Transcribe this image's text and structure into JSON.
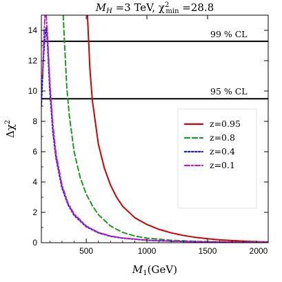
{
  "chart_data": {
    "type": "line",
    "title": {
      "main": "M",
      "main_sub": "H",
      "middle": " =3 TeV,  χ",
      "chi_sup": "2",
      "chi_sub": "min",
      "tail": " =28.8"
    },
    "xlabel": {
      "main": "M",
      "sub": "1",
      "unit": "(GeV)"
    },
    "ylabel": {
      "main": "Δχ",
      "sup": "2"
    },
    "xlim": [
      130,
      2000
    ],
    "ylim": [
      0,
      15
    ],
    "xticks": [
      500,
      1000,
      1500,
      2000
    ],
    "yticks": [
      0,
      2,
      4,
      6,
      8,
      10,
      12,
      14
    ],
    "grid": false,
    "legend_position": "right",
    "reference_lines": [
      {
        "y": 13.28,
        "label": "99 % CL"
      },
      {
        "y": 9.49,
        "label": "95 % CL"
      }
    ],
    "series": [
      {
        "name": "z=0.95",
        "color": "#cc0000",
        "dash": "solid",
        "x": [
          510,
          530,
          550,
          600,
          650,
          700,
          750,
          800,
          900,
          1000,
          1100,
          1200,
          1300,
          1400,
          1500,
          1600,
          1700,
          1800,
          1900,
          2000
        ],
        "y": [
          15.0,
          11.5,
          9.4,
          6.5,
          4.9,
          3.8,
          3.0,
          2.4,
          1.65,
          1.2,
          0.88,
          0.65,
          0.48,
          0.35,
          0.26,
          0.19,
          0.14,
          0.1,
          0.07,
          0.05
        ]
      },
      {
        "name": "z=0.8",
        "color": "#1a9a1a",
        "dash": "dashed",
        "x": [
          310,
          320,
          340,
          360,
          400,
          450,
          500,
          550,
          600,
          700,
          800,
          900,
          1000,
          1200,
          1400,
          1600,
          1800,
          2000
        ],
        "y": [
          15.0,
          13.3,
          10.2,
          8.4,
          6.0,
          4.3,
          3.2,
          2.45,
          1.85,
          1.1,
          0.68,
          0.44,
          0.3,
          0.16,
          0.09,
          0.06,
          0.04,
          0.03
        ]
      },
      {
        "name": "z=0.4",
        "color": "#1a1aee",
        "dash": "dotted",
        "x": [
          130,
          140,
          150,
          160,
          170,
          180,
          200,
          225,
          250,
          300,
          350,
          400,
          500,
          600,
          700,
          800,
          1000,
          1200,
          1500,
          2000
        ],
        "y": [
          9.0,
          11.0,
          12.5,
          13.6,
          14.2,
          13.2,
          10.0,
          7.3,
          5.6,
          3.6,
          2.5,
          1.8,
          1.05,
          0.65,
          0.42,
          0.3,
          0.16,
          0.1,
          0.05,
          0.02
        ]
      },
      {
        "name": "z=0.1",
        "color": "#c020c0",
        "dash": "dashdot",
        "x": [
          140,
          150,
          160,
          170,
          180,
          190,
          200,
          225,
          250,
          300,
          350,
          400,
          500,
          600,
          700,
          800,
          1000,
          1200,
          1500,
          2000
        ],
        "y": [
          11.0,
          13.5,
          15.0,
          15.0,
          13.8,
          12.2,
          10.6,
          7.8,
          5.9,
          3.8,
          2.6,
          1.9,
          1.1,
          0.68,
          0.44,
          0.31,
          0.17,
          0.1,
          0.05,
          0.02
        ]
      }
    ]
  }
}
